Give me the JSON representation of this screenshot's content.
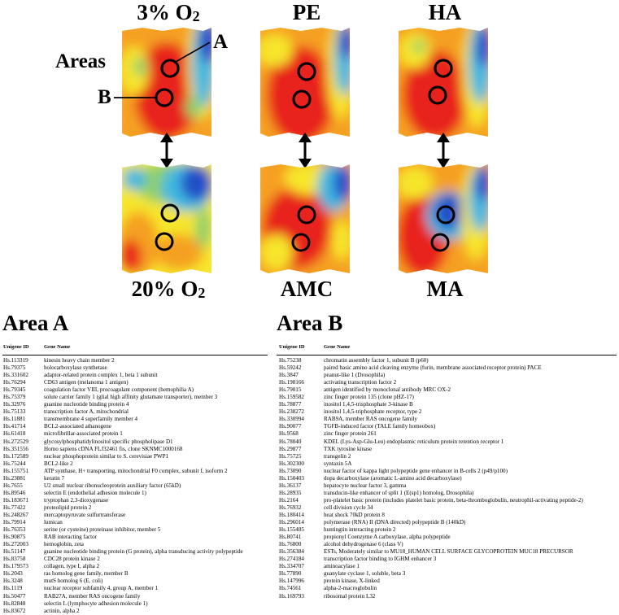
{
  "panels": {
    "top": [
      {
        "label": "3% O",
        "sub": "2"
      },
      {
        "label": "PE",
        "sub": ""
      },
      {
        "label": "HA",
        "sub": ""
      }
    ],
    "bottom": [
      {
        "label": "20% O",
        "sub": "2"
      },
      {
        "label": "AMC",
        "sub": ""
      },
      {
        "label": "MA",
        "sub": ""
      }
    ]
  },
  "callouts": {
    "areas": "Areas",
    "a": "A",
    "b": "B"
  },
  "area_a": {
    "title": "Area A",
    "headers": {
      "id": "Unigene ID",
      "name": "Gene Name"
    },
    "rows": [
      [
        "Hs.113319",
        "kinesin heavy chain member 2"
      ],
      [
        "Hs.79375",
        "holocarboxylase synthetase"
      ],
      [
        "Hs.331602",
        "adaptor-related protein complex 1, beta 1 subunit"
      ],
      [
        "Hs.76294",
        "CD63 antigen (melanoma 1 antigen)"
      ],
      [
        "Hs.79345",
        "coagulation factor VIII, procoagulant component (hemophilia A)"
      ],
      [
        "Hs.75379",
        "solute carrier family 1 (glial high affinity glutamate transporter), member 3"
      ],
      [
        "Hs.32976",
        "guanine nucleotide binding protein 4"
      ],
      [
        "Hs.75133",
        "transcription factor A, mitochondrial"
      ],
      [
        "Hs.11881",
        "transmembrane 4 superfamily member 4"
      ],
      [
        "Hs.41714",
        "BCL2-associated athanogene"
      ],
      [
        "Hs.61418",
        "microfibrillar-associated protein 1"
      ],
      [
        "Hs.272529",
        "glycosylphosphatidylinositol specific phospholipase D1"
      ],
      [
        "Hs.351556",
        "Homo sapiens cDNA FLJ32461 fis, clone SKNMC1000168"
      ],
      [
        "Hs.172589",
        "nuclear phosphoprotein similar to S. cerevisiae PWP1"
      ],
      [
        "Hs.75244",
        "BCL2-like 2"
      ],
      [
        "Hs.155751",
        "ATP synthase, H+ transporting, mitochondrial F0 complex, subunit f, isoform 2"
      ],
      [
        "Hs.23881",
        "keratin 7"
      ],
      [
        "Hs.7655",
        "U2 small nuclear ribonucleoprotein auxiliary factor (65kD)"
      ],
      [
        "Hs.89546",
        "selectin E (endothelial adhesion molecule 1)"
      ],
      [
        "Hs.183671",
        "tryptophan 2,3-dioxygenase"
      ],
      [
        "Hs.77422",
        "proteolipid protein 2"
      ],
      [
        "Hs.248267",
        "mercaptopyruvate sulfurtransferase"
      ],
      [
        "Hs.79914",
        "lumican"
      ],
      [
        "Hs.76353",
        "serine (or cysteine) proteinase inhibitor, member 5"
      ],
      [
        "Hs.90875",
        "RAB interacting factor"
      ],
      [
        "Hs.272003",
        "hemoglobin, zeta"
      ],
      [
        "Hs.51147",
        "guanine nucleotide binding protein (G protein), alpha transducing activity polypeptide"
      ],
      [
        "Hs.83758",
        "CDC28 protein kinase 2"
      ],
      [
        "Hs.179573",
        "collagen, type I, alpha 2"
      ],
      [
        "Hs.2043",
        "ras homolog gene family, member B"
      ],
      [
        "Hs.3248",
        "mutS homolog 6 (E. coli)"
      ],
      [
        "Hs.1119",
        "nuclear receptor subfamily 4, group A, member 1"
      ],
      [
        "Hs.50477",
        "RAB27A, member RAS oncogene family"
      ],
      [
        "Hs.82848",
        "selectin L (lymphocyte adhesion molecule 1)"
      ],
      [
        "Hs.83672",
        "actinin, alpha 2"
      ]
    ]
  },
  "area_b": {
    "title": "Area B",
    "headers": {
      "id": "Unigene ID",
      "name": "Gene Name"
    },
    "rows": [
      [
        "Hs.75238",
        "chromatin assembly factor 1, subunit B (p60)"
      ],
      [
        "Hs.59242",
        "paired basic amino acid cleaving enzyme (furin, membrane associated receptor protein) PACE"
      ],
      [
        "Hs.3847",
        "peanut-like 1 (Drosophila)"
      ],
      [
        "Hs.198166",
        "activating transcription factor 2"
      ],
      [
        "Hs.79015",
        "antigen identified by monoclonal antibody MRC OX-2"
      ],
      [
        "Hs.159582",
        "zinc finger protein 135 (clone pHZ-17)"
      ],
      [
        "Hs.78877",
        "inositol 1,4,5-trisphosphate 3-kinase B"
      ],
      [
        "Hs.238272",
        "inositol 1,4,5-triphosphate receptor, type 2"
      ],
      [
        "Hs.330994",
        "RAB9A, member RAS oncogene family"
      ],
      [
        "Hs.90077",
        "TGFB-induced factor (TALE family homeobox)"
      ],
      [
        "Hs.9568",
        "zinc finger protein 261"
      ],
      [
        "Hs.78040",
        "KDEL (Lys-Asp-Glu-Leu) endoplasmic reticulum protein retention receptor 1"
      ],
      [
        "Hs.29877",
        "TXK tyrosine kinase"
      ],
      [
        "Hs.75725",
        "transgelin 2"
      ],
      [
        "Hs.302300",
        "syntaxin 5A"
      ],
      [
        "Hs.73090",
        "nuclear factor of kappa light polypeptide gene enhancer in B-cells 2 (p49/p100)"
      ],
      [
        "Hs.150403",
        "dopa decarboxylase (aromatic L-amino acid decarboxylase)"
      ],
      [
        "Hs.36137",
        "hepatocyte nuclear factor 3, gamma"
      ],
      [
        "Hs.28935",
        "transducin-like enhancer of split 1 (E(sp1) homolog, Drosophila)"
      ],
      [
        "Hs.2164",
        "pro-platelet basic protein (includes platelet basic protein, beta-thromboglobulin, neutrophil-activating peptide-2)"
      ],
      [
        "Hs.76932",
        "cell division cycle 34"
      ],
      [
        "Hs.180414",
        "heat shock 70kD protein 8"
      ],
      [
        "Hs.296014",
        "polymerase (RNA) II (DNA directed) polypeptide B (140kD)"
      ],
      [
        "Hs.155485",
        "huntingtin interacting protein 2"
      ],
      [
        "Hs.80741",
        "propionyl Coenzyme A carboxylase, alpha polypeptide"
      ],
      [
        "Hs.76800",
        "alcohol dehydrogenase 6 (class V)"
      ],
      [
        "Hs.356384",
        "ESTs, Moderately similar to MU18_HUMAN CELL SURFACE GLYCOPROTEIN MUC18 PRECURSOR"
      ],
      [
        "Hs.274184",
        "transcription factor binding to IGHM enhancer 3"
      ],
      [
        "Hs.334707",
        "aminoacylase 1"
      ],
      [
        "Hs.77890",
        "guanylate cyclase 1, soluble, beta 3"
      ],
      [
        "Hs.147996",
        "protein kinase, X-linked"
      ],
      [
        "Hs.74561",
        "alpha-2-macroglobulin"
      ],
      [
        "Hs.169793",
        "ribosomal protein L32"
      ]
    ]
  },
  "colors": {
    "red": "#e8201a",
    "orange": "#f5a020",
    "yellow": "#f6e62a",
    "green": "#8fd06a",
    "cyan": "#3fb8e0",
    "blue": "#2050c8",
    "circle": "#000000"
  }
}
